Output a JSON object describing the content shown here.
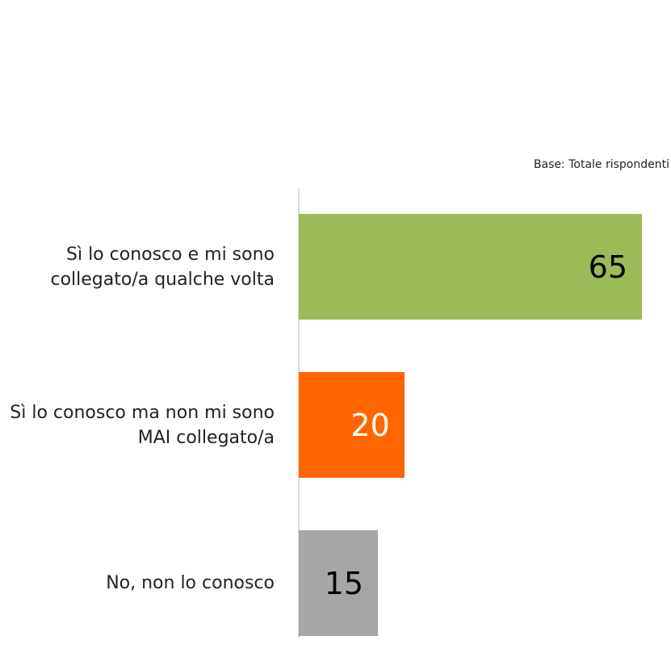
{
  "chart_data": {
    "type": "bar",
    "orientation": "horizontal",
    "subtitle": "Base: Totale rispondenti",
    "categories": [
      "Sì lo conosco e mi sono collegato/a qualche volta",
      "Sì lo conosco ma non mi sono MAI collegato/a",
      "No, non lo conosco"
    ],
    "values": [
      65,
      20,
      15
    ],
    "colors": [
      "#9bbb59",
      "#ff6600",
      "#a6a6a6"
    ],
    "value_label_colors": [
      "#000000",
      "#ffffff",
      "#000000"
    ]
  }
}
